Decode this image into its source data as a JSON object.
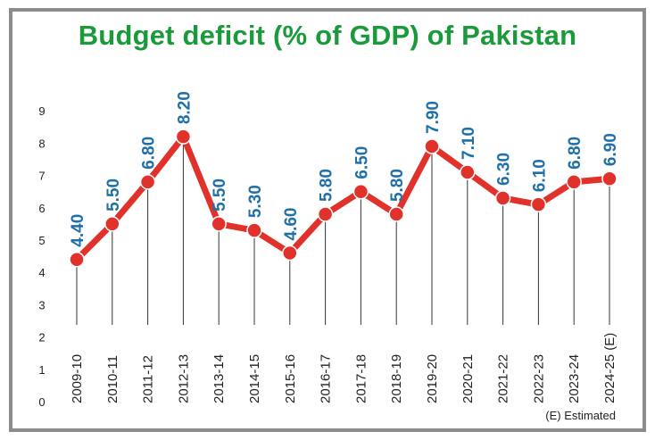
{
  "chart_data": {
    "type": "line",
    "title": "Budget deficit (% of GDP) of Pakistan",
    "categories": [
      "2009-10",
      "2010-11",
      "2011-12",
      "2012-13",
      "2013-14",
      "2014-15",
      "2015-16",
      "2016-17",
      "2017-18",
      "2018-19",
      "2019-20",
      "2020-21",
      "2021-22",
      "2022-23",
      "2023-24",
      "2024-25 (E)"
    ],
    "values": [
      4.4,
      5.5,
      6.8,
      8.2,
      5.5,
      5.3,
      4.6,
      5.8,
      6.5,
      5.8,
      7.9,
      7.1,
      6.3,
      6.1,
      6.8,
      6.9
    ],
    "value_labels": [
      "4.40",
      "5.50",
      "6.80",
      "8.20",
      "5.50",
      "5.30",
      "4.60",
      "5.80",
      "6.50",
      "5.80",
      "7.90",
      "7.10",
      "6.30",
      "6.10",
      "6.80",
      "6.90"
    ],
    "y_ticks": [
      "0",
      "1",
      "2",
      "3",
      "4",
      "5",
      "6",
      "7",
      "8",
      "9"
    ],
    "ylim": [
      0,
      9
    ],
    "xlabel": "",
    "ylabel": "",
    "footnote": "(E) Estimated",
    "colors": {
      "line": "#e0322b",
      "marker": "#e0322b",
      "label": "#1f6fa8",
      "title": "#1a9a3a",
      "drop": "#333333"
    }
  }
}
